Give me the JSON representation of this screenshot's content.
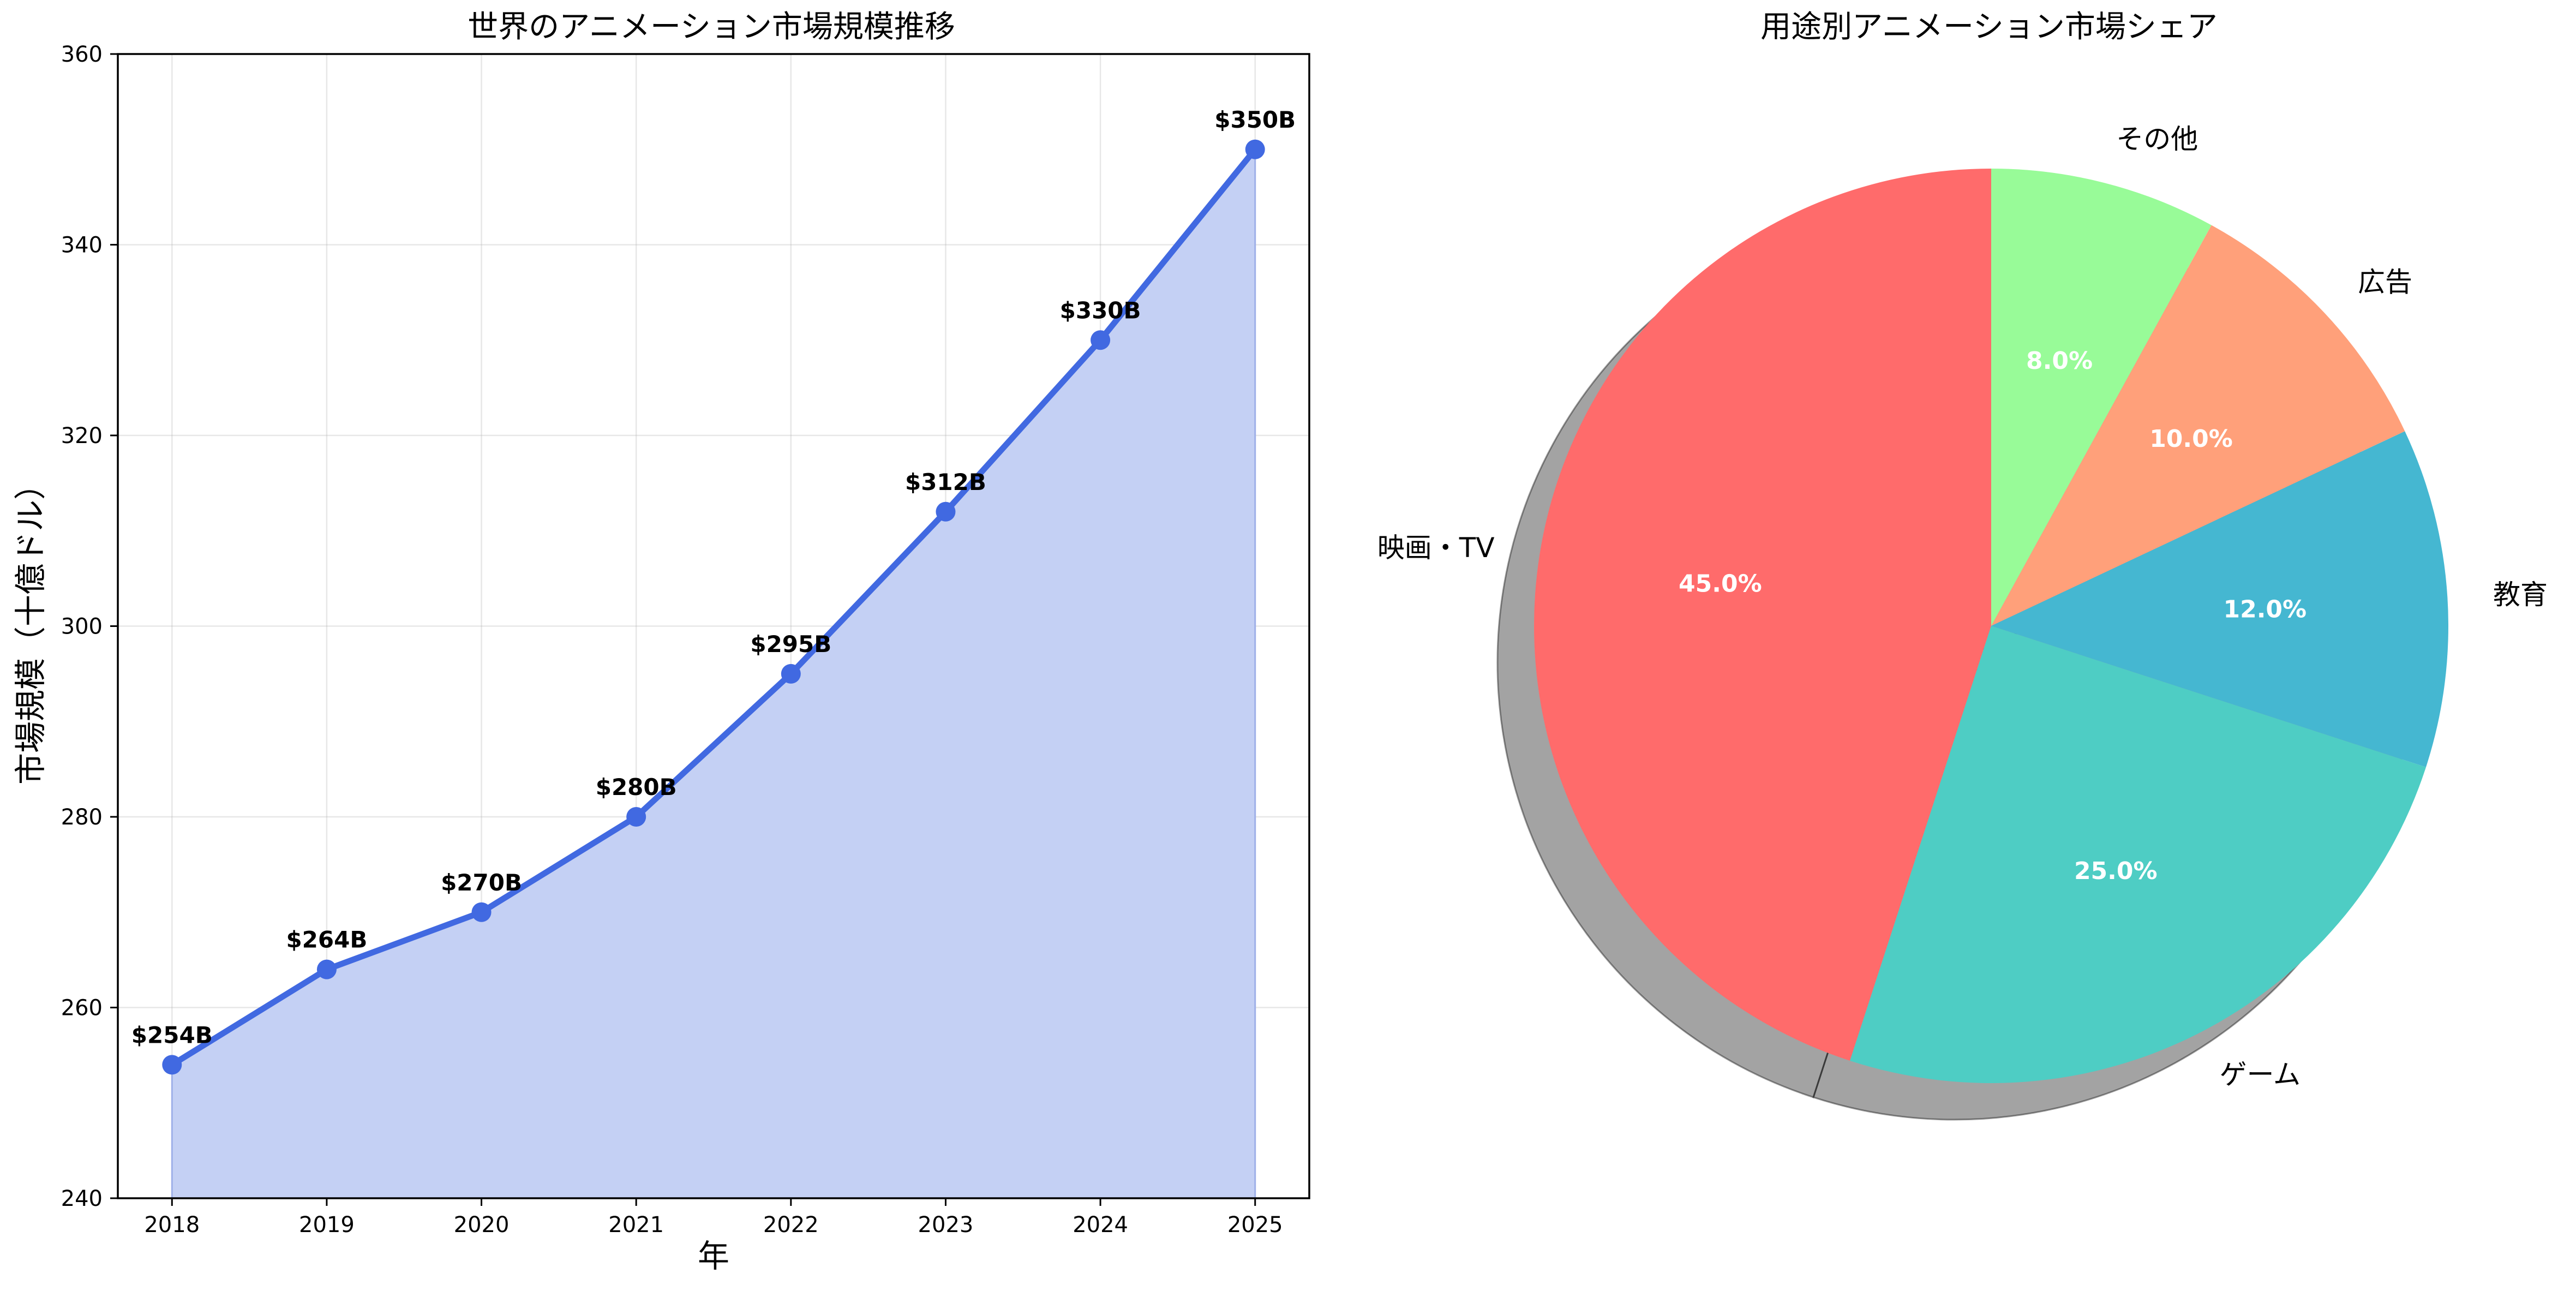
{
  "chart_data": [
    {
      "type": "area",
      "title": "世界のアニメーション市場規模推移",
      "xlabel": "年",
      "ylabel": "市場規模（十億ドル）",
      "x": [
        2018,
        2019,
        2020,
        2021,
        2022,
        2023,
        2024,
        2025
      ],
      "values": [
        254,
        264,
        270,
        280,
        295,
        312,
        330,
        350
      ],
      "data_labels": [
        "$254B",
        "$264B",
        "$270B",
        "$280B",
        "$295B",
        "$312B",
        "$330B",
        "$350B"
      ],
      "ylim": [
        240,
        360
      ],
      "yticks": [
        240,
        260,
        280,
        300,
        320,
        340,
        360
      ],
      "grid": true,
      "line_color": "#4169E1",
      "fill_color": "#C4D0F4"
    },
    {
      "type": "pie",
      "title": "用途別アニメーション市場シェア",
      "labels": [
        "映画・TV",
        "ゲーム",
        "教育",
        "広告",
        "その他"
      ],
      "values": [
        45.0,
        25.0,
        12.0,
        10.0,
        8.0
      ],
      "pct_labels": [
        "45.0%",
        "25.0%",
        "12.0%",
        "10.0%",
        "8.0%"
      ],
      "colors": [
        "#FF6B6B",
        "#4ECDC4",
        "#45B7D1",
        "#FFA07A",
        "#98FB98"
      ],
      "start_angle_deg": 90,
      "direction": "counterclockwise",
      "shadow": true
    }
  ]
}
